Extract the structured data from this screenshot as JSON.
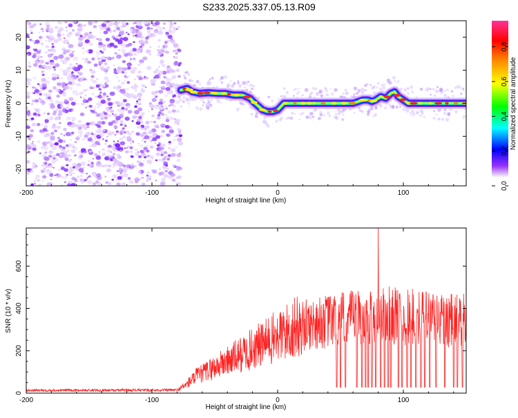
{
  "title": "S233.2025.337.05.13.R09",
  "chart_data": [
    {
      "type": "heatmap",
      "xlabel": "Height of straight line (km)",
      "ylabel": "Frequency (Hz)",
      "xlim": [
        -200,
        150
      ],
      "ylim": [
        -25,
        25
      ],
      "xticks": [
        -200,
        -100,
        0,
        100
      ],
      "yticks": [
        -20,
        -10,
        0,
        10,
        20
      ],
      "noise_region_x": [
        -200,
        -77
      ],
      "ridge": {
        "x": [
          -77,
          -72,
          -68,
          -62,
          -55,
          -48,
          -42,
          -35,
          -28,
          -22,
          -18,
          -15,
          -12,
          -8,
          -4,
          0,
          5,
          10,
          20,
          30,
          40,
          50,
          60,
          64,
          68,
          72,
          75,
          78,
          82,
          86,
          90,
          93,
          96,
          100,
          104,
          110,
          120,
          130,
          140,
          150
        ],
        "y": [
          4,
          4.5,
          3.5,
          3,
          3.2,
          3,
          3,
          2.5,
          2.5,
          1.5,
          0,
          -1,
          -2,
          -2.5,
          -2.5,
          -2,
          0,
          0,
          0,
          0,
          0,
          0,
          0,
          0.5,
          1,
          1,
          0.5,
          1,
          2,
          1.5,
          3,
          3.5,
          2,
          1,
          0,
          0,
          0,
          0,
          0,
          0
        ]
      },
      "colorbar": {
        "label": "Normalized spectral amplitude",
        "ticks": [
          0.0,
          0.2,
          0.4,
          0.6,
          0.8
        ],
        "tick_labels": [
          "0.0",
          "0.2",
          "0.4",
          "0.6",
          "0.8"
        ],
        "range": [
          0,
          0.95
        ],
        "colormap": [
          "#ffffff",
          "#8800ff",
          "#0000ff",
          "#00ffff",
          "#00ff00",
          "#ffff00",
          "#ff8800",
          "#ff0000",
          "#ff3399"
        ]
      }
    },
    {
      "type": "line",
      "xlabel": "Height of straight line (km)",
      "ylabel": "SNR (10 * v/v)",
      "xlim": [
        -200,
        150
      ],
      "ylim": [
        0,
        780
      ],
      "xticks": [
        -200,
        -100,
        0,
        100
      ],
      "yticks": [
        0,
        200,
        400,
        600
      ],
      "series": [
        {
          "color": "#ff2222",
          "envelope": {
            "x": [
              -200,
              -80,
              -72,
              -65,
              -55,
              -45,
              -35,
              -25,
              -15,
              -5,
              0,
              5,
              10,
              15,
              20,
              25,
              30,
              40,
              50,
              60,
              70,
              80,
              90,
              100,
              110,
              120,
              130,
              140,
              150
            ],
            "y": [
              20,
              22,
              60,
              110,
              150,
              190,
              230,
              270,
              310,
              350,
              370,
              390,
              410,
              430,
              440,
              450,
              460,
              470,
              480,
              490,
              500,
              505,
              510,
              500,
              495,
              490,
              485,
              480,
              480
            ]
          },
          "peak": {
            "x": 80,
            "y": 780
          },
          "dropout_x": [
            47,
            50,
            54,
            63,
            67,
            70,
            72,
            75,
            78,
            82,
            85,
            88,
            90,
            96,
            99,
            103,
            106,
            110,
            114,
            117,
            121,
            126,
            133,
            140,
            143,
            147
          ]
        }
      ]
    }
  ]
}
